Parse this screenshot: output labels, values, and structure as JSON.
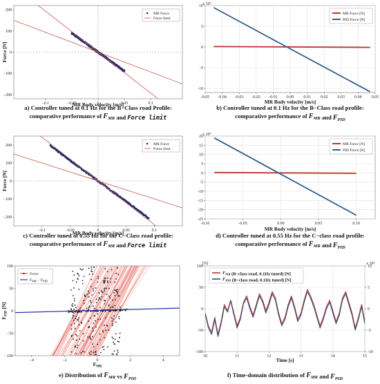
{
  "chart_data": [
    {
      "id": "a",
      "type": "scatter",
      "caption": [
        "a) Controller tuned at 0.1 Hz for the B−Class road Profile:",
        "comparative performance of F_MR and Force limit"
      ],
      "xlabel": "MR Body velocity [m/s]",
      "ylabel": "Force [N]",
      "xlim": [
        -0.16,
        0.16
      ],
      "ylim": [
        -220,
        220
      ],
      "xticks": [
        -0.1,
        -0.05,
        0,
        0.05,
        0.1
      ],
      "xtick_labels": [
        "−0.1",
        "−0.05",
        "0",
        "0.05",
        "0.1"
      ],
      "yticks": [
        -200,
        -100,
        0,
        100,
        200
      ],
      "yticks_labels": [
        "−200",
        "−100",
        "0",
        "100",
        "200"
      ],
      "legend": {
        "placement": "top-right",
        "entries": [
          "MR Force",
          "Force limit"
        ]
      },
      "grid": false,
      "series": [
        {
          "name": "MR Force",
          "kind": "scatter",
          "x_range": [
            -0.05,
            0.05
          ],
          "slope": -1800,
          "color": "#1f2a6b"
        },
        {
          "name": "Force limit",
          "kind": "line",
          "x": [
            -0.16,
            0.16
          ],
          "y": [
            150,
            -150
          ],
          "color": "#c8524e"
        },
        {
          "name": "Force limit",
          "kind": "line",
          "x": [
            -0.16,
            0.16
          ],
          "y": [
            310,
            -310
          ],
          "color": "#c8524e"
        }
      ]
    },
    {
      "id": "b",
      "type": "line",
      "caption": [
        "b) Controller tuned at 0.1 Hz for the B−Class road profile:",
        "comparative performance of F_MR and F_PID"
      ],
      "xlabel": "MR Body velocity [m/s]",
      "ylabel": "",
      "exponent": "x 10³",
      "xlim": [
        -0.05,
        0.05
      ],
      "ylim": [
        -11,
        10
      ],
      "xticks": [
        -0.05,
        -0.04,
        -0.03,
        -0.02,
        -0.01,
        0,
        0.01,
        0.02,
        0.03,
        0.04,
        0.05
      ],
      "xtick_labels": [
        "-0.05",
        "-0.04",
        "-0.03",
        "-0.02",
        "-0.01",
        "0.00",
        "0.01",
        "0.02",
        "0.03",
        "0.04",
        "0.05"
      ],
      "yticks": [
        -10,
        -5,
        0,
        5,
        10
      ],
      "yticks_labels": [
        "-10",
        "-5",
        "0",
        "5",
        "10"
      ],
      "legend": {
        "placement": "top-right",
        "entries": [
          "MR Force [N]",
          "PID Force [N]"
        ]
      },
      "grid": true,
      "series": [
        {
          "name": "MR Force [N]",
          "x": [
            -0.045,
            0.047
          ],
          "y": [
            0.1,
            -0.1
          ],
          "color": "#b8322a"
        },
        {
          "name": "PID Force [N]",
          "x": [
            -0.045,
            0.047
          ],
          "y": [
            9.5,
            -10.8
          ],
          "color": "#2f5d86"
        }
      ]
    },
    {
      "id": "c",
      "type": "scatter",
      "caption": [
        "c) Controller tuned at 0.55 Hz for the C−Class road profile:",
        "comparative performance of F_MR and Force limit"
      ],
      "xlabel": "MR Body velocity [m/s]",
      "ylabel": "Force [N]",
      "xlim": [
        -0.15,
        0.15
      ],
      "ylim": [
        -250,
        250
      ],
      "xticks": [
        -0.1,
        -0.05,
        0,
        0.05,
        0.1
      ],
      "xtick_labels": [
        "−0.1",
        "−0.05",
        "0",
        "0.05",
        "0.1"
      ],
      "yticks": [
        -200,
        -100,
        0,
        100,
        200
      ],
      "yticks_labels": [
        "−200",
        "−100",
        "0",
        "100",
        "200"
      ],
      "legend": {
        "placement": "top-right",
        "entries": [
          "MR Force",
          "Force limit"
        ]
      },
      "grid": false,
      "series": [
        {
          "name": "MR Force",
          "kind": "scatter",
          "x_range": [
            -0.085,
            0.09
          ],
          "slope": -2300,
          "color": "#1f2a6b"
        },
        {
          "name": "Force limit",
          "kind": "line",
          "x": [
            -0.15,
            0.15
          ],
          "y": [
            150,
            -150
          ],
          "color": "#c8524e"
        },
        {
          "name": "Force limit",
          "kind": "line",
          "x": [
            -0.15,
            0.15
          ],
          "y": [
            365,
            -365
          ],
          "color": "#c8524e"
        }
      ]
    },
    {
      "id": "d",
      "type": "line",
      "caption": [
        "d) Controller tuned at 0.55 Hz for the C−class road profile:",
        "comparative performance of F_MR and F_PID"
      ],
      "xlabel": "MR Body velocity [m/s]",
      "ylabel": "",
      "exponent": "x 10³",
      "xlim": [
        -0.1,
        0.125
      ],
      "ylim": [
        -25,
        20
      ],
      "xticks": [
        -0.1,
        -0.05,
        0,
        0.05,
        0.1
      ],
      "xtick_labels": [
        "-0.10",
        "-0.05",
        "0.00",
        "0.05",
        "0.10"
      ],
      "yticks": [
        -25,
        -20,
        -15,
        -10,
        -5,
        0,
        5,
        10,
        15,
        20
      ],
      "yticks_labels": [
        "-25",
        "-20",
        "-15",
        "-10",
        "-5",
        "0",
        "5",
        "10",
        "15",
        "20"
      ],
      "legend": {
        "placement": "top-right",
        "entries": [
          "MR Force [N]",
          "PID Force [N]"
        ]
      },
      "grid": true,
      "series": [
        {
          "name": "MR Force [N]",
          "x": [
            -0.088,
            0.1
          ],
          "y": [
            0.2,
            -0.2
          ],
          "color": "#b8322a"
        },
        {
          "name": "PID Force [N]",
          "x": [
            -0.088,
            0.1
          ],
          "y": [
            19,
            -23
          ],
          "color": "#2f5d86"
        }
      ]
    },
    {
      "id": "e",
      "type": "scatter",
      "caption": [
        "e) Distribution of F_MR vs F_PID"
      ],
      "xlabel": "F_MR",
      "ylabel": "F_PID [N]",
      "xlim": [
        -5,
        5
      ],
      "ylim": [
        -100,
        100
      ],
      "xticks": [
        -4,
        -2,
        0,
        2,
        4
      ],
      "xtick_labels": [
        "−4",
        "−2",
        "0",
        "2",
        "4"
      ],
      "yticks": [
        -100,
        -50,
        0,
        50,
        100
      ],
      "yticks_labels": [
        "−100",
        "−50",
        "0",
        "50",
        "100"
      ],
      "legend": {
        "placement": "top-left",
        "entries": [
          "Force",
          "F_MR − F_PID"
        ]
      },
      "grid": false,
      "series": [
        {
          "name": "Force",
          "kind": "scatter",
          "color": "#1a1a1a"
        },
        {
          "name": "F_MR − F_PID",
          "kind": "line",
          "x": [
            -5,
            5
          ],
          "y": [
            -4,
            6
          ],
          "color": "#2530a8"
        }
      ]
    },
    {
      "id": "f",
      "type": "line",
      "caption": [
        "f) Time-domain distribution of F_MR and F_PID"
      ],
      "xlabel": "Time [s]",
      "ylabel": "[N]",
      "y2_exponent": "x 10³",
      "xlim": [
        10,
        15
      ],
      "ylim": [
        -100,
        100
      ],
      "y2lim": [
        -10,
        10
      ],
      "xticks": [
        10,
        11,
        12,
        13,
        14,
        15
      ],
      "xtick_labels": [
        "10",
        "11",
        "12",
        "13",
        "14",
        "15"
      ],
      "yticks": [
        -100,
        -50,
        0,
        50,
        100
      ],
      "yticks_labels": [
        "-100",
        "-50",
        "0",
        "50",
        "100"
      ],
      "y2ticks": [
        -10,
        -5,
        0,
        5,
        10
      ],
      "y2ticks_labels": [
        "-10",
        "-5",
        "0",
        "5",
        "10"
      ],
      "legend": {
        "placement": "top-left",
        "entries": [
          "F_MR (B−class road, 0.1Hz tuned) [N]",
          "F_PID (B−class road, 0.1Hz tuned) [N]"
        ]
      },
      "grid": true,
      "series": [
        {
          "name": "F_MR (B−class road, 0.1Hz tuned) [N]",
          "color": "#b8322a",
          "x": [
            10.0,
            10.1,
            10.2,
            10.3,
            10.4,
            10.5,
            10.6,
            10.7,
            10.8,
            10.9,
            11.0,
            11.1,
            11.2,
            11.3,
            11.4,
            11.5,
            11.6,
            11.7,
            11.8,
            11.9,
            12.0,
            12.1,
            12.2,
            12.3,
            12.4,
            12.5,
            12.6,
            12.7,
            12.8,
            12.9,
            13.0,
            13.1,
            13.2,
            13.3,
            13.4,
            13.5,
            13.6,
            13.7,
            13.8,
            13.9,
            14.0,
            14.1,
            14.2,
            14.3,
            14.4,
            14.5,
            14.6,
            14.7,
            14.8,
            14.9,
            15.0
          ],
          "y": [
            -10,
            -40,
            -55,
            -20,
            -60,
            -30,
            10,
            -5,
            20,
            -10,
            -40,
            -20,
            15,
            30,
            5,
            -15,
            10,
            35,
            20,
            -5,
            15,
            40,
            25,
            -10,
            -35,
            -20,
            10,
            30,
            5,
            -25,
            -10,
            20,
            45,
            30,
            10,
            -15,
            -40,
            -20,
            5,
            20,
            -5,
            -30,
            -10,
            25,
            40,
            15,
            -10,
            -45,
            -20,
            10,
            -30
          ]
        },
        {
          "name": "F_PID (B−class road, 0.1Hz tuned) [N]",
          "color": "#2f4a72",
          "x": [
            10.0,
            10.1,
            10.2,
            10.3,
            10.4,
            10.5,
            10.6,
            10.7,
            10.8,
            10.9,
            11.0,
            11.1,
            11.2,
            11.3,
            11.4,
            11.5,
            11.6,
            11.7,
            11.8,
            11.9,
            12.0,
            12.1,
            12.2,
            12.3,
            12.4,
            12.5,
            12.6,
            12.7,
            12.8,
            12.9,
            13.0,
            13.1,
            13.2,
            13.3,
            13.4,
            13.5,
            13.6,
            13.7,
            13.8,
            13.9,
            14.0,
            14.1,
            14.2,
            14.3,
            14.4,
            14.5,
            14.6,
            14.7,
            14.8,
            14.9,
            15.0
          ],
          "y": [
            -12,
            -45,
            -60,
            -25,
            -65,
            -35,
            5,
            -8,
            18,
            -15,
            -45,
            -25,
            12,
            25,
            0,
            -20,
            5,
            30,
            15,
            -10,
            10,
            35,
            20,
            -15,
            -40,
            -25,
            5,
            25,
            0,
            -30,
            -15,
            15,
            40,
            25,
            5,
            -20,
            -45,
            -25,
            0,
            15,
            -10,
            -35,
            -15,
            20,
            35,
            10,
            -15,
            -50,
            -25,
            5,
            -35
          ]
        }
      ]
    }
  ]
}
